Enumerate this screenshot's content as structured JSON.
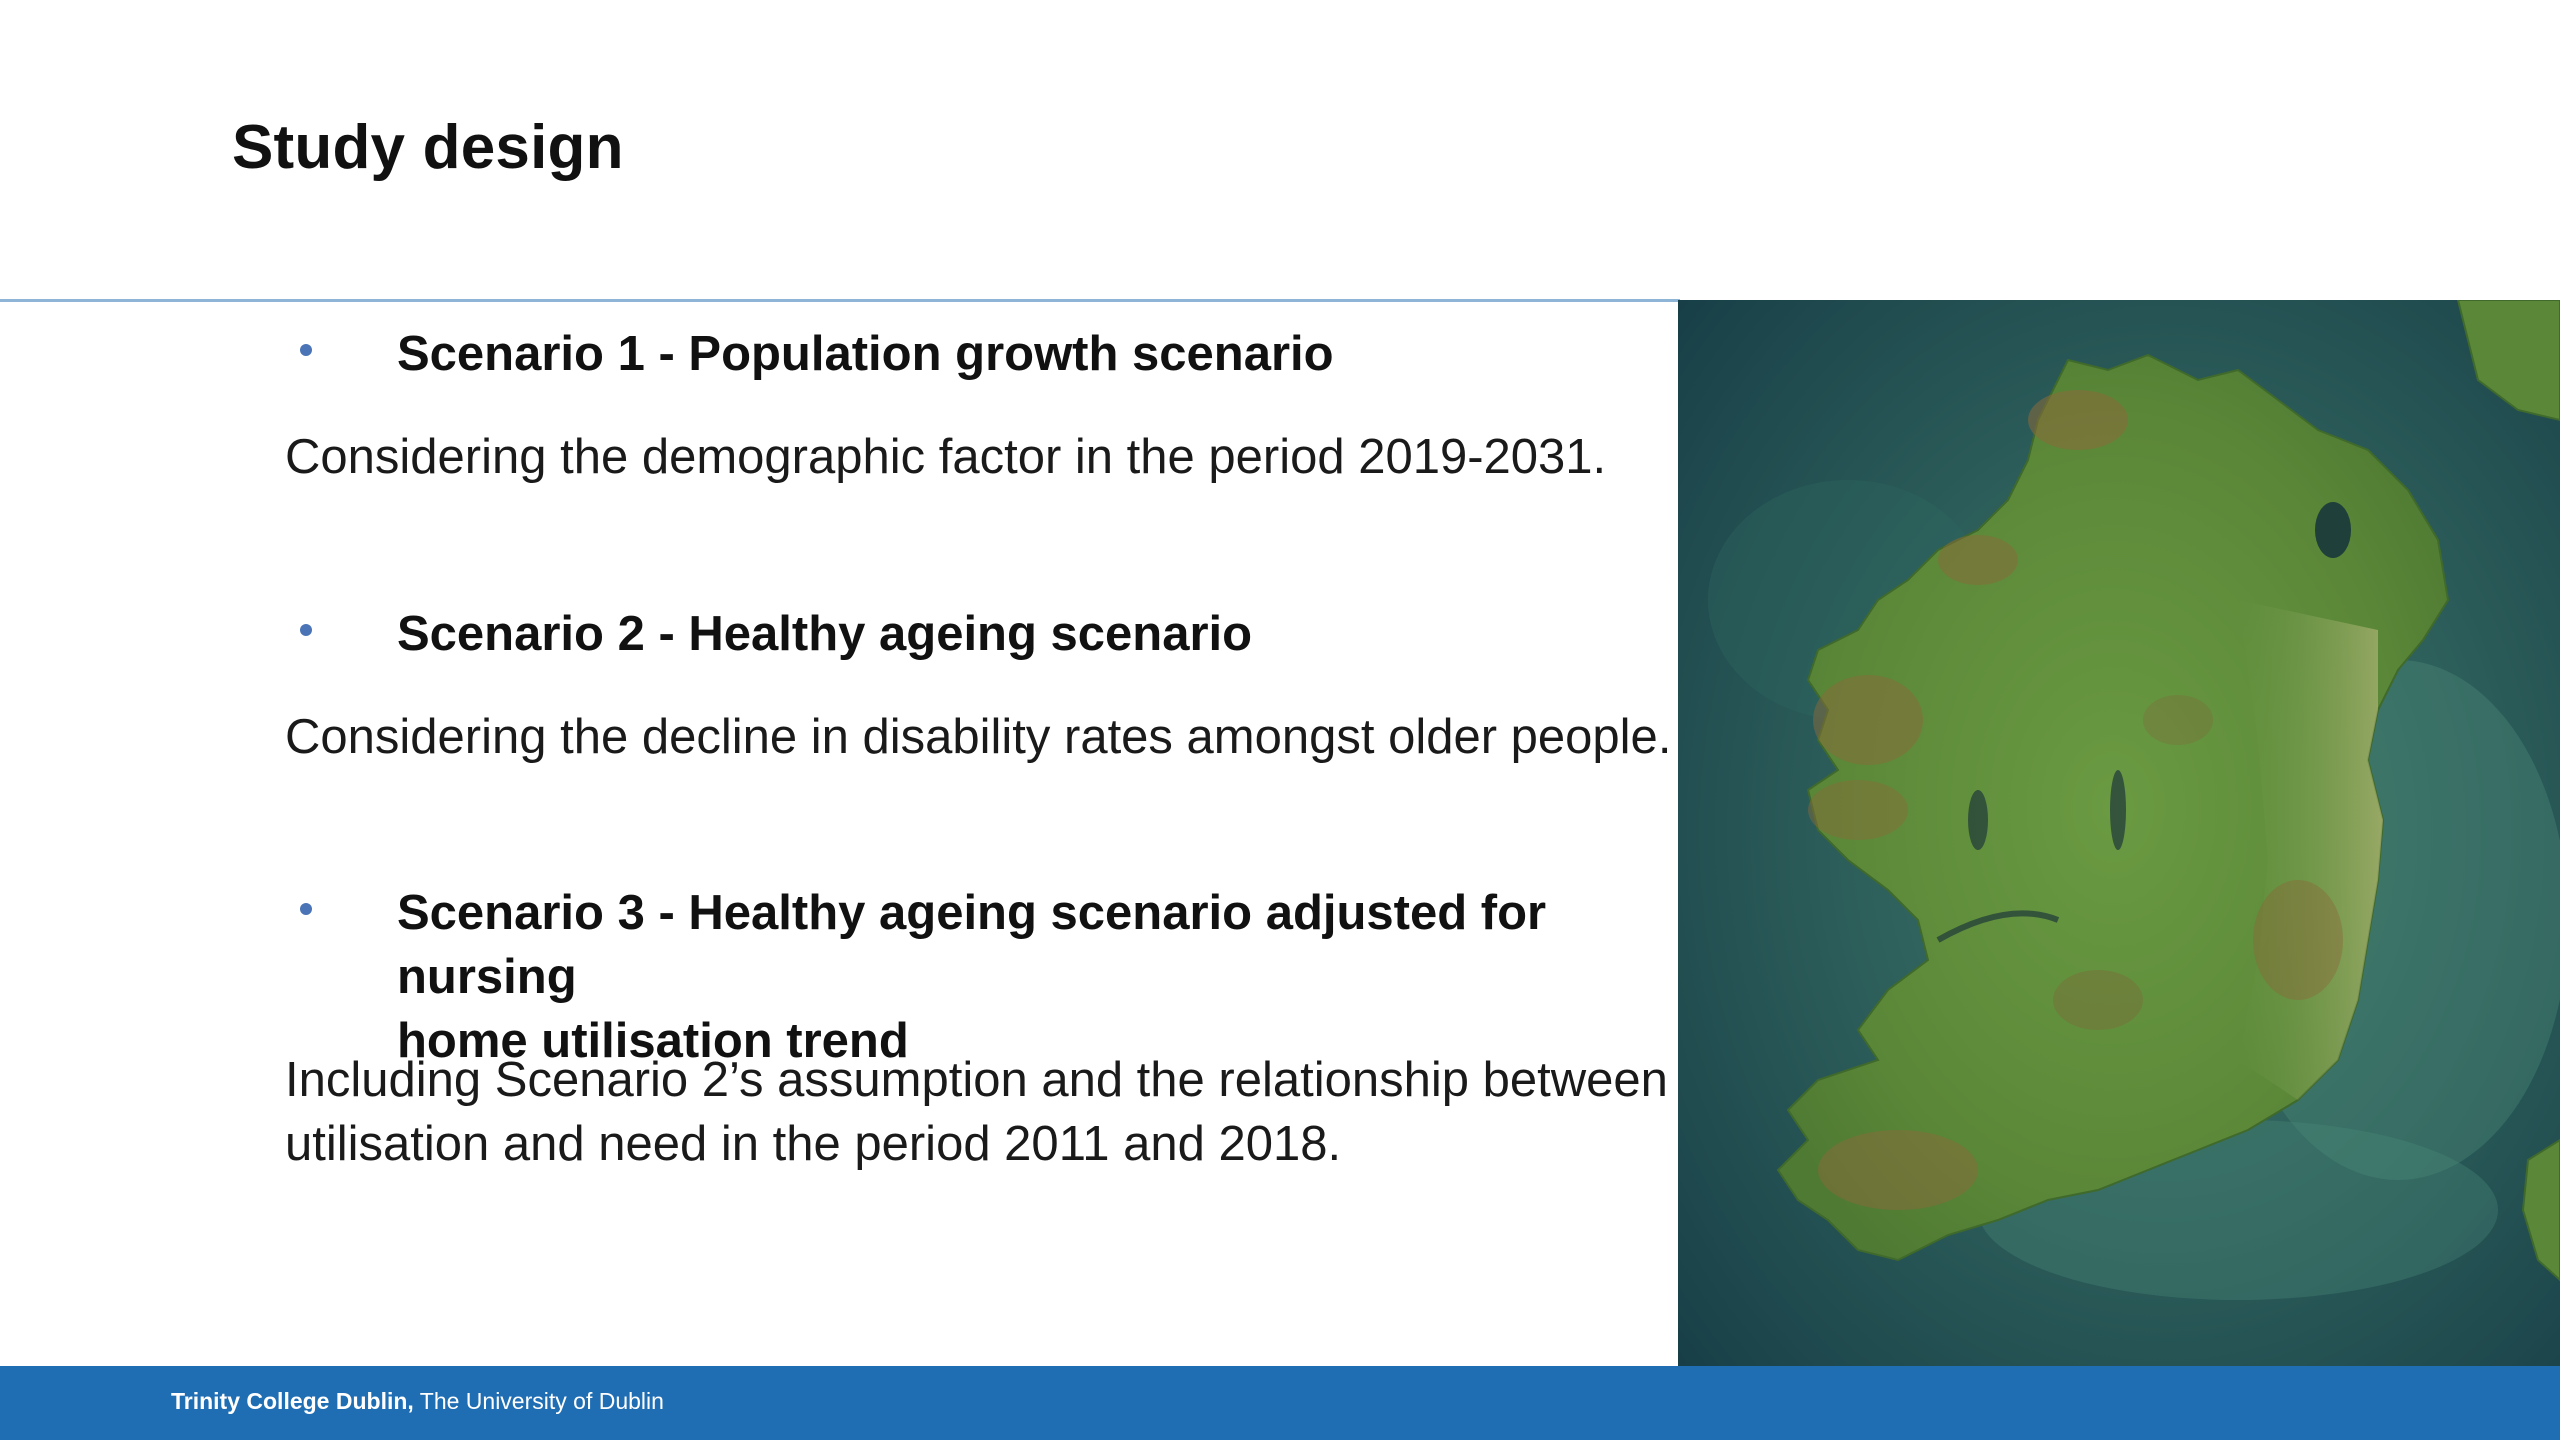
{
  "slide": {
    "title": "Study design"
  },
  "scenarios": [
    {
      "heading": "Scenario 1 - Population growth scenario",
      "description": "Considering the demographic factor in the period 2019-2031."
    },
    {
      "heading": "Scenario 2 - Healthy ageing scenario",
      "description": "Considering the decline in disability rates amongst older people."
    },
    {
      "heading_line1": "Scenario 3 - Healthy ageing scenario adjusted for nursing",
      "heading_line2": "home utilisation trend",
      "description_line1": "Including Scenario 2’s assumption and the relationship between",
      "description_line2": "utilisation and need in the period  2011 and 2018."
    }
  ],
  "footer": {
    "institution": "Trinity College Dublin,",
    "subtitle": " The University of Dublin"
  },
  "colors": {
    "accent": "#1f6eb4",
    "bullet": "#4a74b6",
    "rule": "#8fb5d6",
    "sea": "#1d4a4f",
    "land": "#5d8a3a"
  },
  "image": {
    "subject": "satellite-map-ireland"
  }
}
